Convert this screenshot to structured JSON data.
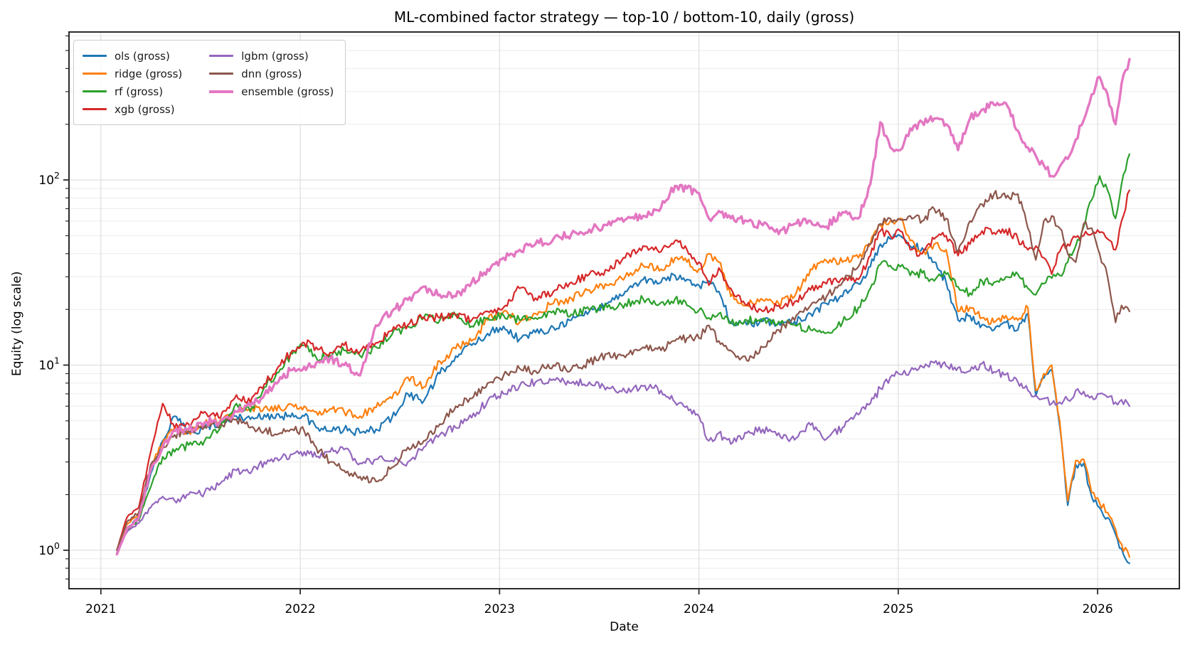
{
  "title": "ML-combined factor strategy — top-10 / bottom-10, daily (gross)",
  "chart_data": {
    "type": "line",
    "title": "ML-combined factor strategy — top-10 / bottom-10, daily (gross)",
    "xlabel": "Date",
    "ylabel": "Equity (log scale)",
    "yscale": "log",
    "grid": "major and minor, light gray, both axes",
    "legend_position": "upper left, 2 columns",
    "xlim": [
      2020.84,
      2026.41
    ],
    "ylim": [
      0.62,
      630
    ],
    "x_ticks": [
      {
        "label": "2021",
        "value": 2021
      },
      {
        "label": "2022",
        "value": 2022
      },
      {
        "label": "2023",
        "value": 2023
      },
      {
        "label": "2024",
        "value": 2024
      },
      {
        "label": "2025",
        "value": 2025
      },
      {
        "label": "2026",
        "value": 2026
      }
    ],
    "y_ticks": [
      {
        "base": "10",
        "exp": "0",
        "value": 1
      },
      {
        "base": "10",
        "exp": "1",
        "value": 10
      },
      {
        "base": "10",
        "exp": "2",
        "value": 100
      }
    ],
    "x": [
      2021.08,
      2021.13,
      2021.19,
      2021.25,
      2021.31,
      2021.37,
      2021.44,
      2021.52,
      2021.6,
      2021.68,
      2021.75,
      2021.82,
      2021.9,
      2021.96,
      2022.02,
      2022.08,
      2022.15,
      2022.22,
      2022.3,
      2022.38,
      2022.46,
      2022.54,
      2022.62,
      2022.7,
      2022.78,
      2022.86,
      2022.94,
      2023.02,
      2023.1,
      2023.18,
      2023.27,
      2023.36,
      2023.45,
      2023.54,
      2023.63,
      2023.72,
      2023.81,
      2023.88,
      2023.94,
      2024.0,
      2024.05,
      2024.1,
      2024.16,
      2024.24,
      2024.32,
      2024.4,
      2024.48,
      2024.56,
      2024.64,
      2024.72,
      2024.8,
      2024.86,
      2024.91,
      2024.96,
      2025.01,
      2025.06,
      2025.12,
      2025.18,
      2025.24,
      2025.3,
      2025.36,
      2025.42,
      2025.48,
      2025.54,
      2025.6,
      2025.65,
      2025.69,
      2025.73,
      2025.77,
      2025.81,
      2025.85,
      2025.89,
      2025.93,
      2025.97,
      2026.01,
      2026.05,
      2026.09,
      2026.12,
      2026.16
    ],
    "series": [
      {
        "name": "ols (gross)",
        "color": "#1f77b4",
        "linewidth": 2.2,
        "values": [
          1.0,
          1.32,
          1.5,
          2.6,
          3.9,
          5.3,
          4.3,
          4.6,
          4.9,
          5.3,
          5.1,
          5.4,
          5.2,
          5.5,
          5.3,
          4.6,
          4.4,
          4.5,
          4.3,
          4.5,
          5.2,
          7.0,
          6.4,
          9.0,
          11.2,
          12.8,
          14.8,
          16.2,
          13.8,
          15.0,
          16.0,
          17.5,
          19.5,
          21.5,
          25.0,
          29.0,
          28.0,
          30.5,
          29.0,
          27.0,
          28.5,
          25.0,
          17.0,
          16.5,
          17.2,
          16.8,
          17.2,
          19.0,
          21.5,
          23.5,
          27.5,
          34.0,
          45.0,
          48.0,
          50.0,
          44.0,
          43.0,
          36.0,
          28.0,
          17.5,
          18.5,
          16.5,
          15.5,
          17.0,
          15.5,
          19.0,
          6.8,
          8.5,
          9.5,
          4.7,
          1.75,
          2.9,
          2.95,
          1.95,
          1.7,
          1.5,
          1.22,
          1.02,
          0.85
        ]
      },
      {
        "name": "ridge (gross)",
        "color": "#ff7f0e",
        "linewidth": 2.2,
        "values": [
          1.0,
          1.38,
          1.55,
          2.8,
          3.8,
          4.6,
          4.4,
          4.8,
          5.1,
          5.6,
          5.8,
          5.9,
          5.8,
          6.1,
          6.0,
          5.6,
          5.8,
          5.6,
          5.3,
          5.9,
          6.6,
          8.6,
          7.6,
          10.5,
          12.3,
          13.5,
          17.5,
          19.5,
          17.0,
          19.0,
          21.5,
          23.0,
          25.5,
          27.0,
          30.0,
          34.5,
          33.0,
          38.0,
          36.0,
          33.0,
          40.0,
          36.0,
          23.5,
          21.0,
          22.5,
          21.5,
          23.5,
          33.0,
          36.5,
          36.0,
          38.0,
          45.0,
          57.0,
          60.0,
          62.0,
          47.0,
          40.0,
          45.0,
          42.0,
          19.5,
          20.5,
          18.0,
          17.0,
          18.5,
          17.5,
          20.5,
          7.3,
          9.0,
          10.0,
          5.0,
          1.85,
          3.05,
          3.1,
          2.05,
          1.8,
          1.6,
          1.3,
          1.08,
          0.92
        ]
      },
      {
        "name": "rf (gross)",
        "color": "#2ca02c",
        "linewidth": 2.2,
        "values": [
          0.97,
          1.28,
          1.45,
          2.2,
          3.2,
          3.4,
          3.7,
          3.9,
          4.6,
          6.2,
          5.6,
          7.6,
          9.5,
          11.5,
          12.8,
          11.0,
          11.3,
          12.0,
          11.2,
          12.5,
          14.6,
          16.2,
          18.0,
          17.5,
          18.5,
          16.2,
          18.0,
          18.6,
          17.5,
          18.0,
          19.6,
          18.8,
          19.9,
          20.5,
          21.5,
          22.8,
          21.8,
          22.8,
          21.0,
          19.8,
          18.0,
          19.0,
          16.8,
          17.5,
          17.8,
          17.2,
          16.5,
          15.5,
          14.9,
          17.0,
          20.5,
          26.0,
          35.0,
          34.5,
          34.0,
          30.5,
          31.5,
          28.5,
          31.0,
          26.5,
          24.5,
          28.5,
          28.0,
          30.0,
          31.0,
          26.0,
          24.0,
          27.5,
          29.5,
          30.5,
          36.0,
          44.0,
          56.0,
          78.0,
          105.0,
          88.0,
          62.0,
          95.0,
          138.0
        ]
      },
      {
        "name": "xgb (gross)",
        "color": "#d62728",
        "linewidth": 2.2,
        "values": [
          1.0,
          1.5,
          1.7,
          3.4,
          6.2,
          4.6,
          4.8,
          5.6,
          5.2,
          6.9,
          6.3,
          7.9,
          10.0,
          12.0,
          13.2,
          12.5,
          11.7,
          12.8,
          11.8,
          13.2,
          15.3,
          16.5,
          18.2,
          18.0,
          18.8,
          17.5,
          19.5,
          20.5,
          26.0,
          23.0,
          25.0,
          28.0,
          31.0,
          32.5,
          38.0,
          44.0,
          41.0,
          47.0,
          42.0,
          36.0,
          27.0,
          33.5,
          26.0,
          21.0,
          19.5,
          21.0,
          22.0,
          25.5,
          27.5,
          29.5,
          29.0,
          39.0,
          53.0,
          50.0,
          53.0,
          42.0,
          40.0,
          48.0,
          50.0,
          39.0,
          45.0,
          53.0,
          52.0,
          54.0,
          48.0,
          42.0,
          44.0,
          38.0,
          31.0,
          41.0,
          45.0,
          49.0,
          50.0,
          51.0,
          52.0,
          48.0,
          42.0,
          60.0,
          88.0
        ]
      },
      {
        "name": "lgbm (gross)",
        "color": "#9467bd",
        "linewidth": 2.2,
        "values": [
          1.0,
          1.25,
          1.4,
          1.7,
          1.95,
          1.85,
          2.0,
          2.05,
          2.3,
          2.7,
          2.6,
          3.0,
          3.1,
          3.3,
          3.4,
          3.2,
          3.4,
          3.5,
          2.95,
          3.1,
          3.05,
          3.0,
          3.6,
          4.2,
          4.6,
          5.2,
          6.4,
          7.0,
          7.7,
          8.1,
          8.4,
          8.0,
          8.1,
          7.6,
          7.2,
          7.7,
          7.3,
          6.3,
          6.0,
          5.3,
          3.9,
          4.3,
          3.75,
          4.3,
          4.5,
          4.3,
          3.95,
          4.75,
          4.0,
          4.6,
          5.4,
          6.2,
          7.5,
          8.6,
          8.9,
          9.3,
          9.8,
          10.3,
          9.9,
          9.7,
          9.3,
          10.2,
          9.2,
          8.9,
          8.1,
          7.3,
          6.9,
          6.6,
          6.2,
          6.3,
          6.5,
          7.3,
          7.2,
          6.8,
          7.0,
          6.7,
          6.3,
          6.5,
          6.0
        ]
      },
      {
        "name": "dnn (gross)",
        "color": "#8c564b",
        "linewidth": 2.2,
        "values": [
          1.0,
          1.42,
          1.6,
          2.9,
          3.6,
          4.2,
          4.4,
          4.7,
          4.8,
          5.1,
          4.6,
          4.4,
          4.3,
          4.5,
          4.4,
          3.6,
          3.0,
          2.7,
          2.5,
          2.35,
          2.8,
          3.6,
          3.9,
          4.8,
          6.0,
          6.6,
          8.0,
          8.8,
          9.6,
          9.3,
          10.0,
          9.5,
          10.3,
          11.5,
          11.0,
          12.5,
          12.0,
          13.5,
          14.0,
          14.0,
          16.4,
          13.5,
          12.0,
          10.6,
          12.5,
          15.5,
          17.5,
          21.0,
          23.5,
          28.0,
          34.0,
          45.0,
          58.0,
          62.0,
          61.0,
          64.0,
          60.0,
          70.0,
          62.0,
          41.0,
          60.0,
          74.0,
          84.0,
          80.0,
          84.0,
          55.0,
          37.0,
          60.0,
          64.0,
          55.0,
          40.0,
          36.0,
          58.0,
          55.0,
          40.0,
          30.0,
          17.0,
          21.0,
          19.5
        ]
      },
      {
        "name": "ensemble (gross)",
        "color": "#e377c2",
        "linewidth": 3.4,
        "values": [
          0.95,
          1.3,
          1.5,
          2.7,
          3.6,
          4.4,
          4.5,
          4.9,
          5.0,
          5.6,
          6.0,
          6.9,
          8.6,
          9.4,
          9.8,
          10.3,
          10.9,
          10.0,
          8.8,
          16.4,
          19.5,
          22.5,
          26.5,
          24.0,
          23.5,
          28.0,
          33.0,
          38.0,
          42.0,
          45.0,
          48.0,
          51.0,
          54.0,
          57.0,
          61.0,
          64.0,
          71.0,
          93.0,
          90.0,
          85.0,
          62.0,
          68.0,
          62.0,
          60.0,
          57.0,
          51.0,
          58.0,
          60.0,
          56.0,
          67.0,
          62.0,
          95.0,
          205.0,
          150.0,
          145.0,
          190.0,
          205.0,
          215.0,
          200.0,
          145.0,
          215.0,
          240.0,
          255.0,
          260.0,
          185.0,
          150.0,
          135.0,
          120.0,
          105.0,
          118.0,
          130.0,
          165.0,
          210.0,
          290.0,
          360.0,
          290.0,
          200.0,
          330.0,
          450.0
        ]
      }
    ]
  }
}
